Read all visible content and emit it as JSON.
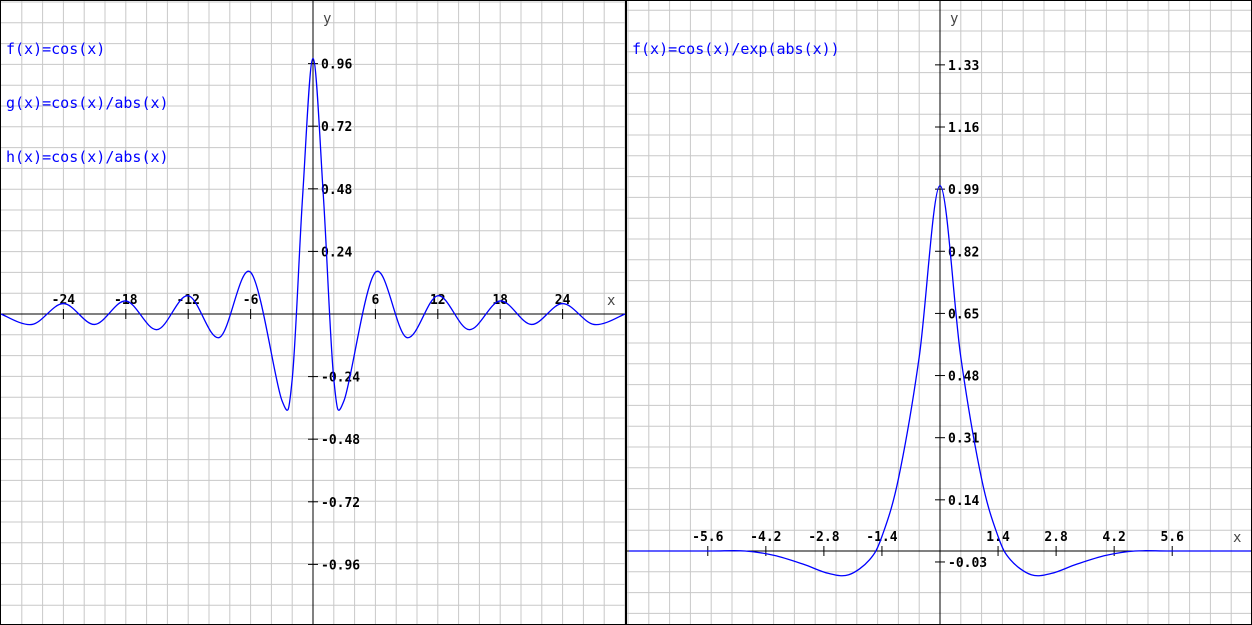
{
  "colors": {
    "grid": "#c8c8c8",
    "axis": "#000000",
    "curve": "#0000ff",
    "legend_text": "#0000ff",
    "background": "#ffffff"
  },
  "chart_data": [
    {
      "type": "line",
      "legend": [
        "f(x)=cos(x)",
        "g(x)=cos(x)/abs(x)",
        "h(x)=cos(x)/abs(x)"
      ],
      "xlabel": "x",
      "ylabel": "y",
      "xlim": [
        -30,
        30
      ],
      "ylim": [
        -1.2,
        1.2
      ],
      "x_ticks": [
        -24,
        -18,
        -12,
        -6,
        6,
        12,
        18,
        24
      ],
      "x_tick_labels": [
        "-24",
        "-18",
        "-12",
        "-6",
        "6",
        "12",
        "18",
        "24"
      ],
      "y_ticks": [
        0.96,
        0.72,
        0.48,
        0.24,
        -0.24,
        -0.48,
        -0.72,
        -0.96
      ],
      "y_tick_labels": [
        "0.96",
        "0.72",
        "0.48",
        "0.24",
        "-0.24",
        "-0.48",
        "-0.72",
        "-0.96"
      ],
      "grid": true,
      "series": [
        {
          "name": "h(x)=cos(x)/abs(x)",
          "x": [
            -30,
            -27,
            -24,
            -21,
            -18,
            -15,
            -12,
            -9,
            -6,
            -3,
            -2,
            -1,
            0,
            1,
            2,
            3,
            6,
            9,
            12,
            15,
            18,
            21,
            24,
            27,
            30
          ],
          "y": [
            0.0,
            -0.04,
            0.04,
            -0.04,
            0.05,
            -0.06,
            0.07,
            -0.09,
            0.16,
            -0.33,
            -0.25,
            0.45,
            0.98,
            0.45,
            -0.25,
            -0.33,
            0.16,
            -0.09,
            0.07,
            -0.06,
            0.05,
            -0.04,
            0.04,
            -0.04,
            0.0
          ]
        }
      ]
    },
    {
      "type": "line",
      "legend": [
        "f(x)=cos(x)/exp(abs(x))"
      ],
      "xlabel": "x",
      "ylabel": "y",
      "xlim": [
        -7.5,
        7.5
      ],
      "ylim": [
        -0.16,
        1.45
      ],
      "x_ticks": [
        -5.6,
        -4.2,
        -2.8,
        -1.4,
        1.4,
        2.8,
        4.2,
        5.6
      ],
      "x_tick_labels": [
        "-5.6",
        "-4.2",
        "-2.8",
        "-1.4",
        "1.4",
        "2.8",
        "4.2",
        "5.6"
      ],
      "y_ticks": [
        1.33,
        1.16,
        0.99,
        0.82,
        0.65,
        0.48,
        0.31,
        0.14,
        -0.03
      ],
      "y_tick_labels": [
        "1.33",
        "1.16",
        "0.99",
        "0.82",
        "0.65",
        "0.48",
        "0.31",
        "0.14",
        "-0.03"
      ],
      "grid": true,
      "series": [
        {
          "name": "f(x)=cos(x)/exp(abs(x))",
          "x": [
            -7.5,
            -6.5,
            -5.5,
            -4.7,
            -4,
            -3.3,
            -2.7,
            -2.2,
            -1.7,
            -1.4,
            -1.0,
            -0.5,
            0,
            0.5,
            1.0,
            1.4,
            1.7,
            2.2,
            2.7,
            3.3,
            4,
            4.7,
            5.5,
            6.5,
            7.5
          ],
          "y": [
            0.0,
            0.0,
            0.0,
            0.0,
            -0.012,
            -0.036,
            -0.061,
            -0.065,
            -0.024,
            0.04,
            0.199,
            0.532,
            1.0,
            0.532,
            0.199,
            0.04,
            -0.024,
            -0.065,
            -0.061,
            -0.036,
            -0.012,
            0.0,
            0.0,
            0.0,
            0.0
          ]
        }
      ]
    }
  ]
}
